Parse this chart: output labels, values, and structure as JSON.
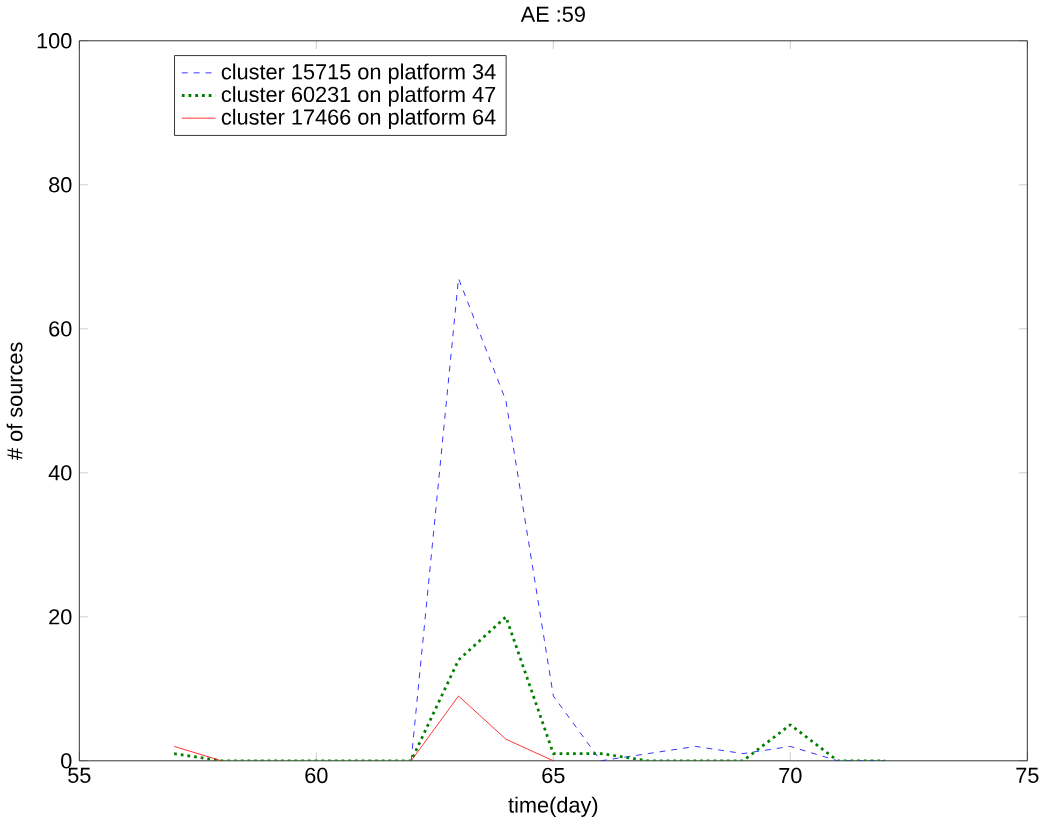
{
  "chart_data": {
    "type": "line",
    "title": "AE :59",
    "xlabel": "time(day)",
    "ylabel": "# of sources",
    "x": [
      57,
      58,
      59,
      60,
      61,
      62,
      63,
      64,
      65,
      66,
      67,
      68,
      69,
      70,
      71,
      72
    ],
    "series": [
      {
        "name": "cluster 15715 on platform 34",
        "color": "#0000ff",
        "line_style": "dashed",
        "values": [
          null,
          null,
          null,
          null,
          null,
          0,
          67,
          50,
          9,
          0,
          1,
          2,
          1,
          2,
          0,
          0
        ]
      },
      {
        "name": "cluster 60231 on platform 47",
        "color": "#008000",
        "line_style": "dotted",
        "values": [
          1,
          0,
          0,
          0,
          0,
          0,
          14,
          20,
          1,
          1,
          0,
          0,
          0,
          5,
          0,
          0
        ]
      },
      {
        "name": "cluster 17466 on platform 64",
        "color": "#ff0000",
        "line_style": "solid",
        "values": [
          2,
          0,
          null,
          null,
          null,
          0,
          9,
          3,
          0,
          null,
          null,
          null,
          null,
          null,
          null,
          null
        ]
      }
    ],
    "xlim": [
      55,
      75
    ],
    "ylim": [
      0,
      100
    ],
    "xticks": [
      55,
      60,
      65,
      70,
      75
    ],
    "yticks": [
      0,
      20,
      40,
      60,
      80,
      100
    ],
    "grid": false,
    "legend": "top left"
  }
}
